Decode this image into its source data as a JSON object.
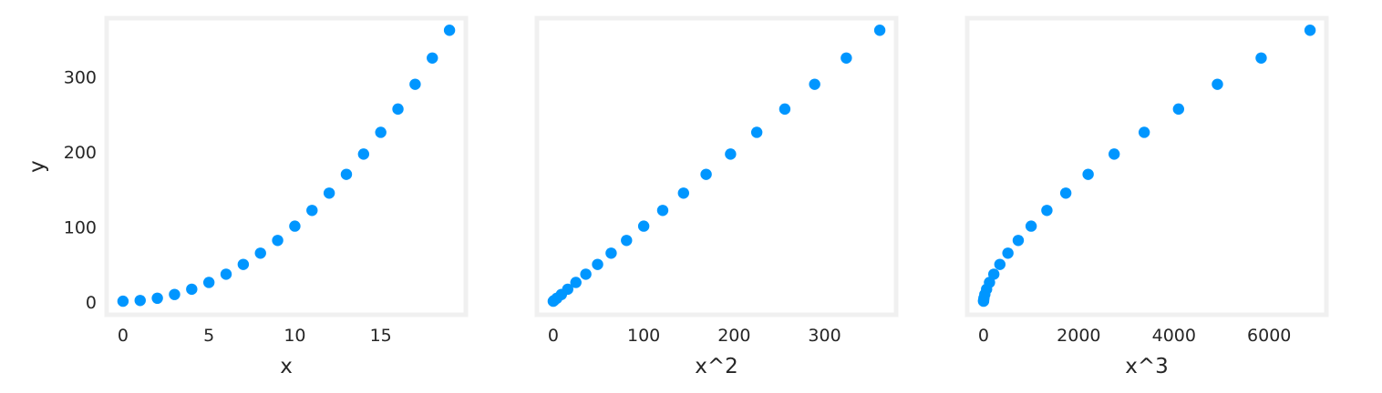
{
  "chart_data": [
    {
      "type": "scatter",
      "xlabel": "x",
      "ylabel": "y",
      "xlim": [
        -0.95,
        19.95
      ],
      "ylim": [
        -17.05,
        378.05
      ],
      "xticks": [
        0,
        5,
        10,
        15
      ],
      "yticks": [
        0,
        100,
        200,
        300
      ],
      "x": [
        0,
        1,
        2,
        3,
        4,
        5,
        6,
        7,
        8,
        9,
        10,
        11,
        12,
        13,
        14,
        15,
        16,
        17,
        18,
        19
      ],
      "y": [
        1,
        2,
        5,
        10,
        17,
        26,
        37,
        50,
        65,
        82,
        101,
        122,
        145,
        170,
        197,
        226,
        257,
        290,
        325,
        362
      ],
      "point_color": "#0096ff",
      "grid": false
    },
    {
      "type": "scatter",
      "xlabel": "x^2",
      "ylabel": "",
      "xlim": [
        -18.05,
        379.05
      ],
      "ylim": [
        -17.05,
        378.05
      ],
      "xticks": [
        0,
        100,
        200,
        300
      ],
      "yticks": [],
      "x": [
        0,
        1,
        4,
        9,
        16,
        25,
        36,
        49,
        64,
        81,
        100,
        121,
        144,
        169,
        196,
        225,
        256,
        289,
        324,
        361
      ],
      "y": [
        1,
        2,
        5,
        10,
        17,
        26,
        37,
        50,
        65,
        82,
        101,
        122,
        145,
        170,
        197,
        226,
        257,
        290,
        325,
        362
      ],
      "point_color": "#0096ff",
      "grid": false
    },
    {
      "type": "scatter",
      "xlabel": "x^3",
      "ylabel": "",
      "xlim": [
        -342.95,
        7201.95
      ],
      "ylim": [
        -17.05,
        378.05
      ],
      "xticks": [
        0,
        2000,
        4000,
        6000
      ],
      "yticks": [],
      "x": [
        0,
        1,
        8,
        27,
        64,
        125,
        216,
        343,
        512,
        729,
        1000,
        1331,
        1728,
        2197,
        2744,
        3375,
        4096,
        4913,
        5832,
        6859
      ],
      "y": [
        1,
        2,
        5,
        10,
        17,
        26,
        37,
        50,
        65,
        82,
        101,
        122,
        145,
        170,
        197,
        226,
        257,
        290,
        325,
        362
      ],
      "point_color": "#0096ff",
      "grid": false
    }
  ]
}
